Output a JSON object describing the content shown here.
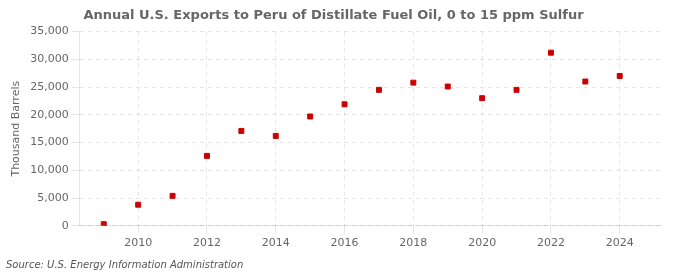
{
  "chart_data": {
    "type": "scatter",
    "title": "Annual U.S. Exports to Peru of Distillate Fuel Oil, 0 to 15 ppm Sulfur",
    "ylabel": "Thousand Barrels",
    "annotations": [
      "Source: U.S. Energy Information Administration"
    ],
    "x": [
      2009,
      2010,
      2011,
      2012,
      2013,
      2014,
      2015,
      2016,
      2017,
      2018,
      2019,
      2020,
      2021,
      2022,
      2023,
      2024
    ],
    "values": [
      300,
      3800,
      5400,
      12600,
      17100,
      16200,
      19700,
      21900,
      24500,
      25800,
      25100,
      23000,
      24500,
      31200,
      26000,
      27000
    ],
    "color": "#cc0000",
    "marker": "square",
    "xlim": [
      2008.3,
      2025.2
    ],
    "xticks": [
      2010,
      2012,
      2014,
      2016,
      2018,
      2020,
      2022,
      2024
    ],
    "ylim": [
      0,
      35000
    ],
    "yticks": [
      0,
      {
        "value": 5000,
        "label": "5,000"
      },
      {
        "value": 10000,
        "label": "10,000"
      },
      {
        "value": 15000,
        "label": "15,000"
      },
      {
        "value": 20000,
        "label": "20,000"
      },
      {
        "value": 25000,
        "label": "25,000"
      },
      {
        "value": 30000,
        "label": "30,000"
      },
      {
        "value": 35000,
        "label": "35,000"
      }
    ],
    "grid": true
  }
}
